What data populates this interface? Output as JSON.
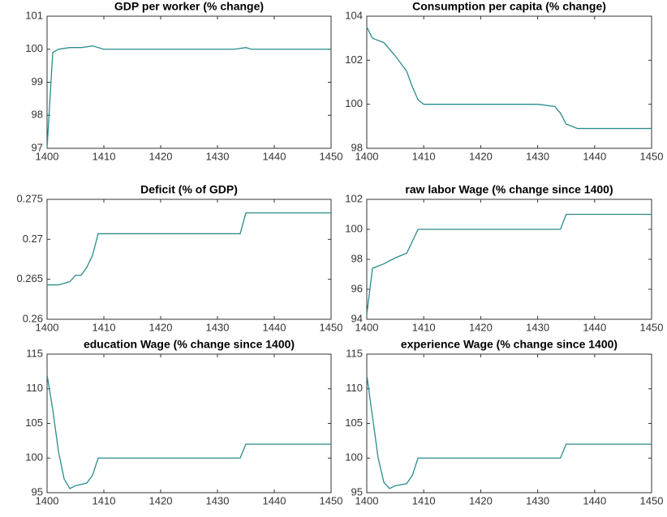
{
  "chart_data": [
    {
      "type": "line",
      "title": "GDP per worker (% change)",
      "color": "#2a8c8c",
      "x": [
        1400,
        1401,
        1402,
        1404,
        1406,
        1408,
        1410,
        1420,
        1433,
        1435,
        1436,
        1450
      ],
      "values": [
        97,
        99.9,
        100,
        100.05,
        100.05,
        100.1,
        100,
        100,
        100,
        100.05,
        100,
        100
      ],
      "xlim": [
        1400,
        1450
      ],
      "xticks": [
        1400,
        1410,
        1420,
        1430,
        1440,
        1450
      ],
      "ylim": [
        97,
        101
      ],
      "yticks": [
        97,
        98,
        99,
        100,
        101
      ]
    },
    {
      "type": "line",
      "title": "Consumption per capita (% change)",
      "color": "#2a8c8c",
      "x": [
        1400,
        1401,
        1403,
        1405,
        1407,
        1408,
        1409,
        1410,
        1420,
        1430,
        1433,
        1434,
        1435,
        1437,
        1450
      ],
      "values": [
        103.5,
        103,
        102.8,
        102.2,
        101.5,
        100.8,
        100.2,
        100,
        100,
        100,
        99.9,
        99.6,
        99.1,
        98.9,
        98.9
      ],
      "xlim": [
        1400,
        1450
      ],
      "xticks": [
        1400,
        1410,
        1420,
        1430,
        1440,
        1450
      ],
      "ylim": [
        98,
        104
      ],
      "yticks": [
        98,
        100,
        102,
        104
      ]
    },
    {
      "type": "line",
      "title": "Deficit (% of GDP)",
      "color": "#2a8c8c",
      "x": [
        1400,
        1402,
        1404,
        1405,
        1406,
        1407,
        1408,
        1409,
        1410,
        1434,
        1435,
        1450
      ],
      "values": [
        0.2643,
        0.2643,
        0.2647,
        0.2655,
        0.2655,
        0.2665,
        0.268,
        0.2707,
        0.2707,
        0.2707,
        0.2733,
        0.2733
      ],
      "xlim": [
        1400,
        1450
      ],
      "xticks": [
        1400,
        1410,
        1420,
        1430,
        1440,
        1450
      ],
      "ylim": [
        0.26,
        0.275
      ],
      "yticks": [
        0.26,
        0.265,
        0.27,
        0.275
      ]
    },
    {
      "type": "line",
      "title": "raw labor Wage (% change since 1400)",
      "color": "#2a8c8c",
      "x": [
        1400,
        1401,
        1403,
        1405,
        1407,
        1408,
        1409,
        1434,
        1435,
        1450
      ],
      "values": [
        94.3,
        97.4,
        97.7,
        98.1,
        98.4,
        99.2,
        100,
        100,
        101,
        101
      ],
      "xlim": [
        1400,
        1450
      ],
      "xticks": [
        1400,
        1410,
        1420,
        1430,
        1440,
        1450
      ],
      "ylim": [
        94,
        102
      ],
      "yticks": [
        94,
        96,
        98,
        100,
        102
      ]
    },
    {
      "type": "line",
      "title": "education Wage (% change since 1400)",
      "color": "#2a8c8c",
      "x": [
        1400,
        1401,
        1402,
        1403,
        1404,
        1405,
        1407,
        1408,
        1409,
        1434,
        1435,
        1450
      ],
      "values": [
        112,
        107,
        101,
        97,
        95.6,
        96,
        96.4,
        97.5,
        100,
        100,
        102,
        102
      ],
      "xlim": [
        1400,
        1450
      ],
      "xticks": [
        1400,
        1410,
        1420,
        1430,
        1440,
        1450
      ],
      "ylim": [
        95,
        115
      ],
      "yticks": [
        95,
        100,
        105,
        110,
        115
      ]
    },
    {
      "type": "line",
      "title": "experience Wage (% change since 1400)",
      "color": "#2a8c8c",
      "x": [
        1400,
        1401,
        1402,
        1403,
        1404,
        1405,
        1407,
        1408,
        1409,
        1434,
        1435,
        1450
      ],
      "values": [
        112,
        106,
        100,
        96.5,
        95.6,
        96,
        96.3,
        97.5,
        100,
        100,
        102,
        102
      ],
      "xlim": [
        1400,
        1450
      ],
      "xticks": [
        1400,
        1410,
        1420,
        1430,
        1440,
        1450
      ],
      "ylim": [
        95,
        115
      ],
      "yticks": [
        95,
        100,
        105,
        110,
        115
      ]
    }
  ]
}
